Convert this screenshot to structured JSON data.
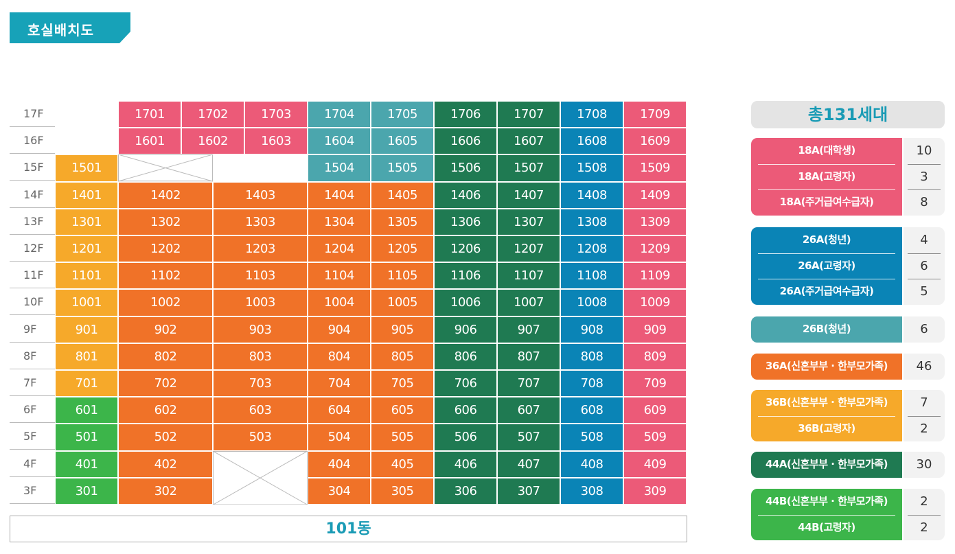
{
  "title": "호실배치도",
  "building_label": "101동",
  "total_label": "총131세대",
  "colors": {
    "teal_title": "#17a2b8",
    "pink": "#ec5a78",
    "teal": "#4ba6ad",
    "darkgreen": "#1f7a52",
    "blue": "#0a84b6",
    "orange": "#f07228",
    "yellow": "#f6a92a",
    "green": "#3cb54a"
  },
  "floors": [
    {
      "label": "17F",
      "units": [
        null,
        "1701",
        "1702",
        "1703",
        "1704",
        "1705",
        "1706",
        "1707",
        "1708",
        "1709"
      ]
    },
    {
      "label": "16F",
      "units": [
        null,
        "1601",
        "1602",
        "1603",
        "1604",
        "1605",
        "1606",
        "1607",
        "1608",
        "1609"
      ]
    },
    {
      "label": "15F",
      "units": [
        "1501",
        "X",
        "X",
        null,
        "1504",
        "1505",
        "1506",
        "1507",
        "1508",
        "1509"
      ]
    },
    {
      "label": "14F",
      "units": [
        "1401",
        "1402",
        "1403",
        null,
        "1404",
        "1405",
        "1406",
        "1407",
        "1408",
        "1409"
      ]
    },
    {
      "label": "13F",
      "units": [
        "1301",
        "1302",
        "1303",
        null,
        "1304",
        "1305",
        "1306",
        "1307",
        "1308",
        "1309"
      ]
    },
    {
      "label": "12F",
      "units": [
        "1201",
        "1202",
        "1203",
        null,
        "1204",
        "1205",
        "1206",
        "1207",
        "1208",
        "1209"
      ]
    },
    {
      "label": "11F",
      "units": [
        "1101",
        "1102",
        "1103",
        null,
        "1104",
        "1105",
        "1106",
        "1107",
        "1108",
        "1109"
      ]
    },
    {
      "label": "10F",
      "units": [
        "1001",
        "1002",
        "1003",
        null,
        "1004",
        "1005",
        "1006",
        "1007",
        "1008",
        "1009"
      ]
    },
    {
      "label": "9F",
      "units": [
        "901",
        "902",
        "903",
        null,
        "904",
        "905",
        "906",
        "907",
        "908",
        "909"
      ]
    },
    {
      "label": "8F",
      "units": [
        "801",
        "802",
        "803",
        null,
        "804",
        "805",
        "806",
        "807",
        "808",
        "809"
      ]
    },
    {
      "label": "7F",
      "units": [
        "701",
        "702",
        "703",
        null,
        "704",
        "705",
        "706",
        "707",
        "708",
        "709"
      ]
    },
    {
      "label": "6F",
      "units": [
        "601",
        "602",
        "603",
        null,
        "604",
        "605",
        "606",
        "607",
        "608",
        "609"
      ]
    },
    {
      "label": "5F",
      "units": [
        "501",
        "502",
        "503",
        null,
        "504",
        "505",
        "506",
        "507",
        "508",
        "509"
      ]
    },
    {
      "label": "4F",
      "units": [
        "401",
        "402",
        "X",
        null,
        "404",
        "405",
        "406",
        "407",
        "408",
        "409"
      ]
    },
    {
      "label": "3F",
      "units": [
        "301",
        "302",
        "X",
        null,
        "304",
        "305",
        "306",
        "307",
        "308",
        "309"
      ]
    }
  ],
  "legend": [
    {
      "color": "#ec5a78",
      "rows": [
        {
          "label": "18A(대학생)",
          "count": "10"
        },
        {
          "label": "18A(고령자)",
          "count": "3"
        },
        {
          "label": "18A(주거급여수급자)",
          "count": "8"
        }
      ]
    },
    {
      "color": "#0a84b6",
      "rows": [
        {
          "label": "26A(청년)",
          "count": "4"
        },
        {
          "label": "26A(고령자)",
          "count": "6"
        },
        {
          "label": "26A(주거급여수급자)",
          "count": "5"
        }
      ]
    },
    {
      "color": "#4ba6ad",
      "rows": [
        {
          "label": "26B(청년)",
          "count": "6"
        }
      ]
    },
    {
      "color": "#f07228",
      "rows": [
        {
          "label": "36A(신혼부부 · 한부모가족)",
          "count": "46"
        }
      ]
    },
    {
      "color": "#f6a92a",
      "rows": [
        {
          "label": "36B(신혼부부 · 한부모가족)",
          "count": "7"
        },
        {
          "label": "36B(고령자)",
          "count": "2"
        }
      ]
    },
    {
      "color": "#1f7a52",
      "rows": [
        {
          "label": "44A(신혼부부 · 한부모가족)",
          "count": "30"
        }
      ]
    },
    {
      "color": "#3cb54a",
      "rows": [
        {
          "label": "44B(신혼부부 · 한부모가족)",
          "count": "2"
        },
        {
          "label": "44B(고령자)",
          "count": "2"
        }
      ]
    }
  ]
}
